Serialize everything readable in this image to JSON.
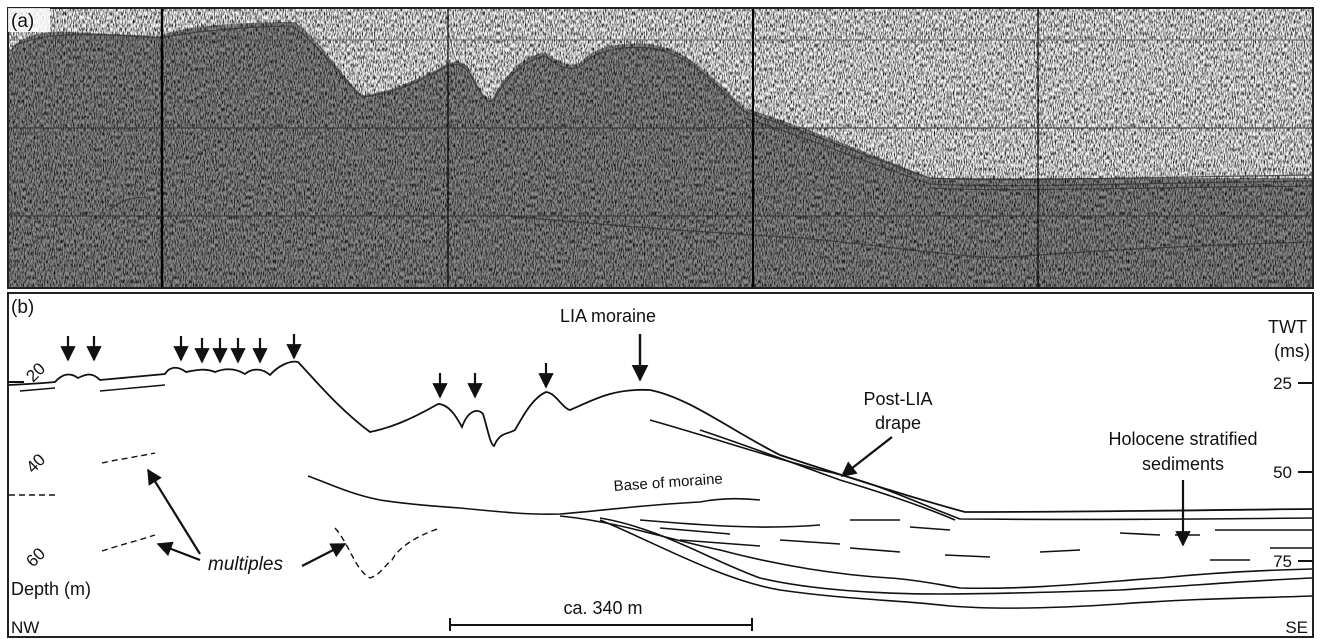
{
  "panel_a": {
    "label": "(a)"
  },
  "panel_b": {
    "label": "(b)",
    "left_axis": {
      "title": "Depth (m)",
      "ticks": [
        "20",
        "40",
        "60"
      ]
    },
    "right_axis": {
      "title_line1": "TWT",
      "title_line2": "(ms)",
      "ticks": [
        "25",
        "50",
        "75"
      ]
    },
    "annotations": {
      "lia_moraine": "LIA moraine",
      "post_lia_line1": "Post-LIA",
      "post_lia_line2": "drape",
      "holocene_line1": "Holocene stratified",
      "holocene_line2": "sediments",
      "base_of_moraine": "Base of moraine",
      "multiples": "multiples"
    },
    "scale_bar": "ca. 340 m",
    "orientation": {
      "left": "NW",
      "right": "SE"
    }
  }
}
